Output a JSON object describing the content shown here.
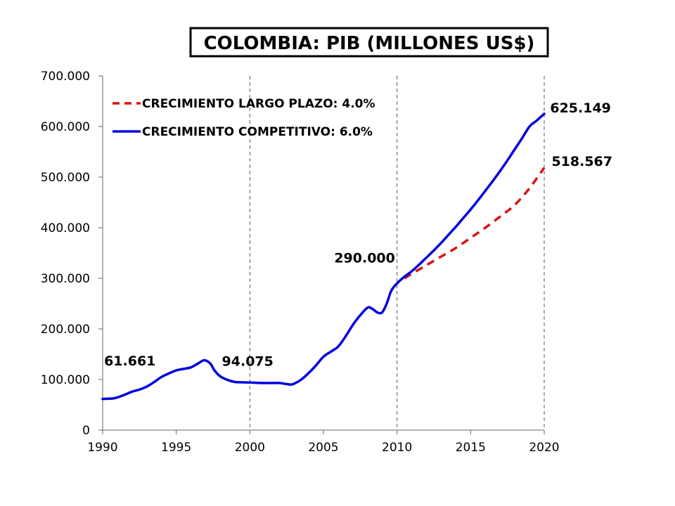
{
  "chart_data": {
    "type": "line",
    "title": "COLOMBIA: PIB (MILLONES US$)",
    "xlabel": "",
    "ylabel": "",
    "xlim": [
      1990,
      2020
    ],
    "ylim": [
      0,
      700000
    ],
    "x_ticks": [
      1990,
      1995,
      2000,
      2005,
      2010,
      2015,
      2020
    ],
    "x_tick_labels": [
      "1990",
      "1995",
      "2000",
      "2005",
      "2010",
      "2015",
      "2020"
    ],
    "y_ticks": [
      0,
      100000,
      200000,
      300000,
      400000,
      500000,
      600000,
      700000
    ],
    "y_tick_labels": [
      "0",
      "100.000",
      "200.000",
      "300.000",
      "400.000",
      "500.000",
      "600.000",
      "700.000"
    ],
    "vertical_dashed_lines": [
      2000,
      2010,
      2020
    ],
    "grid": false,
    "legend_position": "top-left",
    "series": [
      {
        "name": "CRECIMIENTO COMPETITIVO: 6.0%",
        "color": "#0000dd",
        "style": "solid",
        "x": [
          1990,
          1990.8,
          1991.5,
          1992,
          1992.5,
          1993,
          1993.5,
          1994,
          1994.5,
          1995,
          1995.5,
          1996,
          1996.5,
          1996.9,
          1997.3,
          1997.6,
          1998,
          1998.5,
          1999,
          1999.5,
          2000,
          2000.5,
          2001,
          2001.5,
          2002,
          2002.5,
          2002.8,
          2003,
          2003.5,
          2004,
          2004.5,
          2005,
          2005.5,
          2006,
          2006.5,
          2007,
          2007.5,
          2008,
          2008.3,
          2008.7,
          2009,
          2009.3,
          2009.6,
          2010,
          2010.5,
          2011,
          2011.5,
          2012,
          2012.5,
          2013,
          2013.5,
          2014,
          2014.5,
          2015,
          2015.5,
          2016,
          2016.5,
          2017,
          2017.5,
          2018,
          2018.5,
          2019,
          2019.5,
          2020
        ],
        "y": [
          61661,
          63000,
          70000,
          76000,
          80000,
          86000,
          95000,
          105000,
          112000,
          118000,
          121000,
          124000,
          132000,
          138000,
          132000,
          118000,
          106000,
          99000,
          95000,
          94500,
          94075,
          93500,
          93000,
          93000,
          93000,
          91000,
          90000,
          91500,
          100000,
          113000,
          128000,
          145000,
          155000,
          165000,
          185000,
          208000,
          227000,
          242000,
          240000,
          232000,
          233000,
          250000,
          275000,
          290000,
          303000,
          314000,
          327000,
          341000,
          355000,
          370000,
          386000,
          402000,
          419000,
          436000,
          454000,
          473000,
          492000,
          512000,
          533000,
          555000,
          577000,
          600000,
          612000,
          625149
        ]
      },
      {
        "name": "CRECIMIENTO LARGO PLAZO: 4.0%",
        "color": "#dd1111",
        "style": "dashed",
        "x": [
          2010.5,
          2011,
          2012,
          2013,
          2014,
          2015,
          2016,
          2017,
          2018,
          2019,
          2020
        ],
        "y": [
          300000,
          309000,
          326000,
          343000,
          360000,
          380000,
          400000,
          422000,
          445000,
          478000,
          518567
        ]
      }
    ],
    "annotations": [
      {
        "text": "61.661",
        "x": 1990.1,
        "y": 128000,
        "anchor": "start"
      },
      {
        "text": "94.075",
        "x": 1998.1,
        "y": 127000,
        "anchor": "start"
      },
      {
        "text": "290.000",
        "x": 2007.8,
        "y": 331000,
        "anchor": "middle"
      },
      {
        "text": "625.149",
        "x": 2020.4,
        "y": 628000,
        "anchor": "start"
      },
      {
        "text": "518.567",
        "x": 2020.5,
        "y": 522000,
        "anchor": "start"
      }
    ]
  }
}
